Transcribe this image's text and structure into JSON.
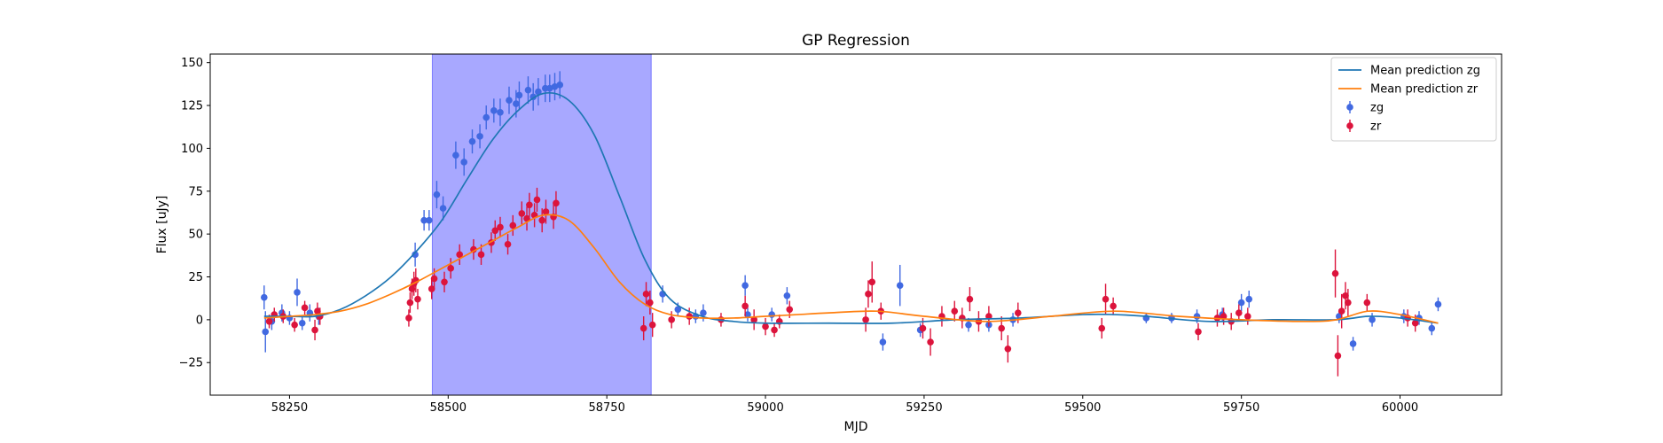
{
  "chart_data": {
    "type": "scatter",
    "title": "GP Regression",
    "xlabel": "MJD",
    "ylabel": "Flux [uJy]",
    "xlim": [
      58125,
      60160
    ],
    "ylim": [
      -44,
      155
    ],
    "xticks": [
      58250,
      58500,
      58750,
      59000,
      59250,
      59500,
      59750,
      60000
    ],
    "yticks": [
      -25,
      0,
      25,
      50,
      75,
      100,
      125,
      150
    ],
    "grid": false,
    "legend_position": "upper-right",
    "colors": {
      "zg": "#4169e1",
      "zr": "#dc143c",
      "mean_zg": "#1f77b4",
      "mean_zr": "#ff7f0e",
      "shade": "#0000ff"
    },
    "shaded_region": {
      "x_start": 58475,
      "x_end": 58820
    },
    "legend": [
      {
        "label": "Mean prediction zg",
        "kind": "line",
        "color_key": "mean_zg"
      },
      {
        "label": "Mean prediction zr",
        "kind": "line",
        "color_key": "mean_zr"
      },
      {
        "label": "zg",
        "kind": "errorbar",
        "color_key": "zg"
      },
      {
        "label": "zr",
        "kind": "errorbar",
        "color_key": "zr"
      }
    ],
    "series": [
      {
        "name": "Mean prediction zg",
        "kind": "line",
        "color_key": "mean_zg",
        "x": [
          58210,
          58250,
          58290,
          58330,
          58370,
          58410,
          58450,
          58490,
          58530,
          58570,
          58610,
          58650,
          58690,
          58730,
          58770,
          58810,
          58850,
          58900,
          58950,
          59000,
          59100,
          59200,
          59300,
          59400,
          59500,
          59550,
          59600,
          59700,
          59800,
          59900,
          59950,
          60000,
          60060
        ],
        "y": [
          2,
          2,
          2,
          6,
          14,
          25,
          40,
          58,
          82,
          105,
          122,
          132,
          128,
          108,
          72,
          35,
          12,
          2,
          -1,
          -2,
          -2,
          -2,
          0,
          1,
          3,
          3,
          2,
          -1,
          0,
          0,
          2,
          1,
          -2
        ]
      },
      {
        "name": "Mean prediction zr",
        "kind": "line",
        "color_key": "mean_zr",
        "x": [
          58210,
          58250,
          58290,
          58330,
          58370,
          58410,
          58450,
          58490,
          58530,
          58570,
          58610,
          58650,
          58690,
          58730,
          58770,
          58810,
          58850,
          58900,
          58950,
          59000,
          59050,
          59100,
          59175,
          59250,
          59350,
          59450,
          59550,
          59650,
          59750,
          59850,
          59900,
          59950,
          60000,
          60060
        ],
        "y": [
          1,
          2,
          3,
          5,
          9,
          15,
          22,
          30,
          38,
          46,
          54,
          61,
          58,
          42,
          22,
          9,
          3,
          1,
          1,
          2,
          3,
          4,
          5,
          2,
          -1,
          2,
          5,
          2,
          0,
          -1,
          0,
          5,
          3,
          -2
        ]
      },
      {
        "name": "zg",
        "kind": "errorbar",
        "color_key": "zg",
        "x": [
          58210,
          58212,
          58222,
          58238,
          58250,
          58262,
          58270,
          58282,
          58296,
          58448,
          58462,
          58470,
          58482,
          58492,
          58512,
          58525,
          58538,
          58550,
          58560,
          58572,
          58582,
          58596,
          58607,
          58612,
          58626,
          58634,
          58642,
          58653,
          58660,
          58668,
          58676,
          58838,
          58862,
          58890,
          58902,
          58968,
          58972,
          59010,
          59034,
          59185,
          59212,
          59244,
          59320,
          59352,
          59390,
          59600,
          59640,
          59680,
          59720,
          59750,
          59762,
          59904,
          59926,
          59956,
          60006,
          60030,
          60050,
          60060
        ],
        "y": [
          13,
          -7,
          -1,
          4,
          1,
          16,
          -2,
          4,
          2,
          38,
          58,
          58,
          73,
          65,
          96,
          92,
          104,
          107,
          118,
          122,
          121,
          128,
          126,
          131,
          134,
          130,
          133,
          135,
          135,
          136,
          137,
          15,
          6,
          2,
          4,
          20,
          3,
          3,
          14,
          -13,
          20,
          -6,
          -3,
          -3,
          0,
          1,
          1,
          2,
          3,
          10,
          12,
          2,
          -14,
          0,
          2,
          1,
          -5,
          9
        ],
        "err": [
          7,
          12,
          5,
          5,
          4,
          8,
          4,
          5,
          5,
          7,
          6,
          6,
          8,
          7,
          8,
          8,
          7,
          7,
          7,
          7,
          8,
          8,
          8,
          8,
          8,
          8,
          8,
          8,
          8,
          8,
          8,
          5,
          4,
          4,
          5,
          6,
          4,
          4,
          5,
          5,
          12,
          4,
          4,
          4,
          4,
          3,
          3,
          4,
          4,
          5,
          5,
          4,
          4,
          4,
          4,
          4,
          4,
          4
        ]
      },
      {
        "name": "zr",
        "kind": "errorbar",
        "color_key": "zr",
        "x": [
          58218,
          58226,
          58240,
          58258,
          58274,
          58290,
          58294,
          58298,
          58438,
          58440,
          58443,
          58446,
          58449,
          58452,
          58474,
          58478,
          58494,
          58504,
          58518,
          58540,
          58552,
          58568,
          58574,
          58582,
          58594,
          58602,
          58616,
          58624,
          58628,
          58636,
          58640,
          58648,
          58654,
          58666,
          58670,
          58808,
          58812,
          58818,
          58822,
          58852,
          58880,
          58930,
          58968,
          58982,
          59000,
          59014,
          59022,
          59038,
          59158,
          59162,
          59168,
          59182,
          59248,
          59260,
          59278,
          59298,
          59310,
          59322,
          59336,
          59352,
          59372,
          59382,
          59398,
          59530,
          59536,
          59548,
          59682,
          59712,
          59722,
          59734,
          59746,
          59760,
          59898,
          59902,
          59908,
          59914,
          59918,
          59948,
          60012,
          60024
        ],
        "y": [
          -1,
          3,
          2,
          -3,
          7,
          -6,
          5,
          2,
          1,
          10,
          18,
          21,
          23,
          12,
          18,
          24,
          22,
          30,
          38,
          41,
          38,
          45,
          52,
          54,
          44,
          55,
          62,
          59,
          67,
          61,
          70,
          58,
          63,
          60,
          68,
          -5,
          15,
          10,
          -3,
          0,
          2,
          0,
          8,
          0,
          -4,
          -6,
          -1,
          6,
          0,
          15,
          22,
          5,
          -5,
          -13,
          2,
          5,
          1,
          12,
          -1,
          2,
          -5,
          -17,
          4,
          -5,
          12,
          8,
          -7,
          1,
          2,
          -1,
          4,
          2,
          27,
          -21,
          5,
          14,
          10,
          10,
          1,
          -2
        ],
        "err": [
          4,
          4,
          4,
          4,
          4,
          6,
          5,
          5,
          5,
          6,
          6,
          7,
          7,
          6,
          6,
          6,
          6,
          6,
          6,
          6,
          6,
          6,
          6,
          6,
          6,
          6,
          7,
          7,
          7,
          7,
          7,
          7,
          7,
          7,
          7,
          7,
          7,
          7,
          7,
          5,
          5,
          4,
          6,
          6,
          5,
          4,
          4,
          5,
          7,
          8,
          12,
          5,
          6,
          8,
          6,
          6,
          6,
          7,
          6,
          6,
          7,
          8,
          6,
          6,
          9,
          5,
          5,
          5,
          5,
          5,
          5,
          5,
          14,
          12,
          10,
          8,
          8,
          5,
          5,
          5
        ]
      }
    ]
  }
}
